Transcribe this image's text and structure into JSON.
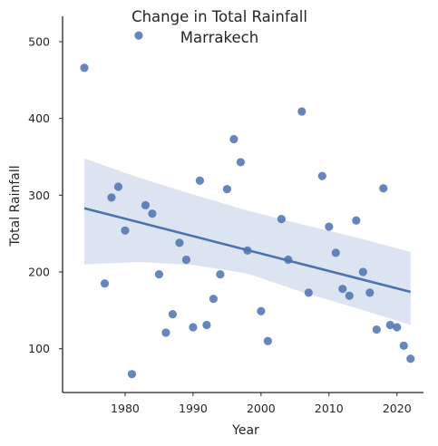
{
  "chart_data": {
    "type": "scatter",
    "title_line1": "Change in Total Rainfall",
    "title_line2": "Marrakech",
    "xlabel": "Year",
    "ylabel": "Total Rainfall",
    "xlim": [
      1970.8,
      2023.9
    ],
    "ylim": [
      43,
      533
    ],
    "xticks": [
      1980,
      1990,
      2000,
      2010,
      2020
    ],
    "yticks": [
      100,
      200,
      300,
      400,
      500
    ],
    "grid": false,
    "legend": "none",
    "colors": {
      "points": "#4C72B0",
      "line": "#4C72B0",
      "band": "#DCE4F2",
      "axis": "#262626"
    },
    "points": [
      {
        "x": 1974,
        "y": 466
      },
      {
        "x": 1977,
        "y": 185
      },
      {
        "x": 1978,
        "y": 297
      },
      {
        "x": 1979,
        "y": 311
      },
      {
        "x": 1980,
        "y": 254
      },
      {
        "x": 1981,
        "y": 67
      },
      {
        "x": 1982,
        "y": 508
      },
      {
        "x": 1983,
        "y": 287
      },
      {
        "x": 1984,
        "y": 276
      },
      {
        "x": 1985,
        "y": 197
      },
      {
        "x": 1986,
        "y": 121
      },
      {
        "x": 1987,
        "y": 145
      },
      {
        "x": 1988,
        "y": 238
      },
      {
        "x": 1989,
        "y": 216
      },
      {
        "x": 1990,
        "y": 128
      },
      {
        "x": 1991,
        "y": 319
      },
      {
        "x": 1992,
        "y": 131
      },
      {
        "x": 1993,
        "y": 165
      },
      {
        "x": 1994,
        "y": 197
      },
      {
        "x": 1995,
        "y": 308
      },
      {
        "x": 1996,
        "y": 373
      },
      {
        "x": 1997,
        "y": 343
      },
      {
        "x": 1998,
        "y": 228
      },
      {
        "x": 2000,
        "y": 149
      },
      {
        "x": 2001,
        "y": 110
      },
      {
        "x": 2003,
        "y": 269
      },
      {
        "x": 2004,
        "y": 216
      },
      {
        "x": 2006,
        "y": 409
      },
      {
        "x": 2007,
        "y": 173
      },
      {
        "x": 2009,
        "y": 325
      },
      {
        "x": 2010,
        "y": 259
      },
      {
        "x": 2011,
        "y": 225
      },
      {
        "x": 2012,
        "y": 178
      },
      {
        "x": 2013,
        "y": 169
      },
      {
        "x": 2014,
        "y": 267
      },
      {
        "x": 2015,
        "y": 200
      },
      {
        "x": 2016,
        "y": 173
      },
      {
        "x": 2017,
        "y": 125
      },
      {
        "x": 2018,
        "y": 309
      },
      {
        "x": 2019,
        "y": 131
      },
      {
        "x": 2020,
        "y": 128
      },
      {
        "x": 2021,
        "y": 104
      },
      {
        "x": 2022,
        "y": 87
      }
    ],
    "regression": {
      "x": [
        1974,
        2022
      ],
      "y": [
        283,
        174
      ],
      "ci_x": [
        1974,
        1982,
        1990,
        1998,
        2006,
        2014,
        2022
      ],
      "ci_upper": [
        348,
        323,
        301,
        280,
        262,
        245,
        226
      ],
      "ci_lower": [
        210,
        213,
        209,
        198,
        174,
        153,
        131
      ]
    }
  }
}
